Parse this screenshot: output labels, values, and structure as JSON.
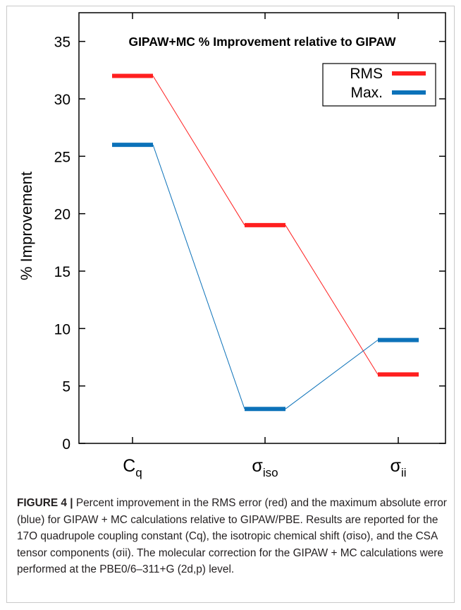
{
  "chart_data": {
    "type": "line",
    "title": "GIPAW+MC % Improvement relative to GIPAW",
    "ylabel": "% Improvement",
    "xlabel": "",
    "ylim": [
      0,
      37.5
    ],
    "yticks": [
      0,
      5,
      10,
      15,
      20,
      25,
      30,
      35
    ],
    "categories": [
      {
        "base": "C",
        "sub": "q"
      },
      {
        "base": "σ",
        "sub": "iso"
      },
      {
        "base": "σ",
        "sub": "ii"
      }
    ],
    "series": [
      {
        "name": "RMS",
        "color": "#ff1f1f",
        "values": [
          32,
          19,
          6
        ]
      },
      {
        "name": "Max.",
        "color": "#0c72b9",
        "values": [
          26,
          3,
          9
        ]
      }
    ],
    "legend": "top-right",
    "grid": false
  },
  "caption": {
    "lead": "FIGURE 4 |",
    "body": " Percent improvement in the RMS error (red) and the maximum absolute error (blue) for GIPAW + MC calculations relative to GIPAW/PBE. Results are reported for the 17O quadrupole coupling constant (Cq), the isotropic chemical shift (σiso), and the CSA tensor components (σii). The molecular correction for the GIPAW + MC calculations were performed at the PBE0/6–311+G (2d,p) level."
  }
}
